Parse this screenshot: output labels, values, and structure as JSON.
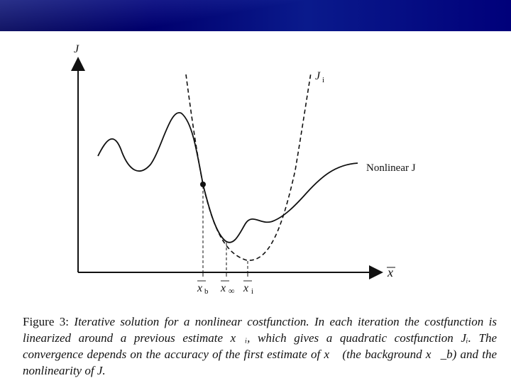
{
  "header": {
    "band_color": "#00007a"
  },
  "figure": {
    "y_axis_label": "J",
    "x_axis_label": "x",
    "quadratic_label": "J",
    "quadratic_label_sub": "i",
    "nonlinear_label": "Nonlinear J",
    "tick_labels": [
      {
        "main": "x",
        "sub": "b"
      },
      {
        "main": "x",
        "sub": "∞"
      },
      {
        "main": "x",
        "sub": "i"
      }
    ]
  },
  "caption": {
    "lead": "Figure 3:",
    "body": "Iterative solution for a nonlinear costfunction. In each iteration the costfunction is linearized around a previous estimate x⃗ᵢ, which gives a quadratic costfunction Jᵢ. The convergence depends on the accuracy of the first estimate of x⃗ (the background x⃗_b) and the nonlinearity of J."
  }
}
